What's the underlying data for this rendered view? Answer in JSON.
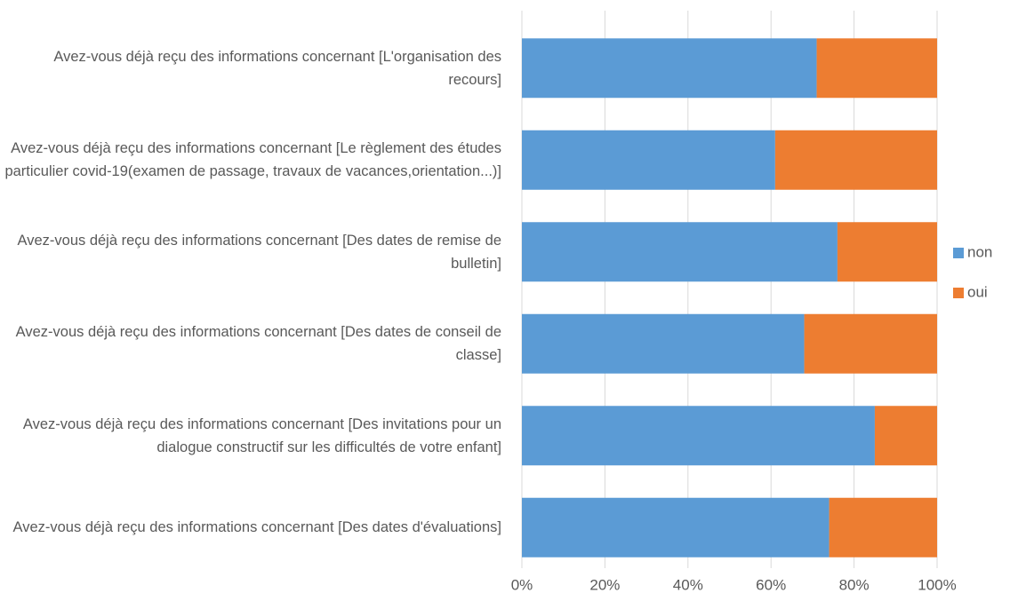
{
  "chart_data": {
    "type": "stacked_bar_horizontal",
    "categories": [
      "Avez-vous déjà reçu des informations concernant [L'organisation des recours]",
      "Avez-vous déjà reçu des informations concernant [Le règlement des études particulier covid-19(examen de passage, travaux de vacances,orientation...)]",
      "Avez-vous déjà reçu des informations concernant [Des dates de remise de bulletin]",
      "Avez-vous déjà reçu des informations concernant [Des dates de conseil de classe]",
      "Avez-vous déjà reçu des informations concernant [Des invitations pour un dialogue constructif sur les difficultés de votre enfant]",
      "Avez-vous déjà reçu des informations concernant [Des dates d'évaluations]"
    ],
    "series": [
      {
        "name": "non",
        "color": "#5b9bd5",
        "values": [
          71,
          61,
          76,
          68,
          85,
          74
        ]
      },
      {
        "name": "oui",
        "color": "#ed7d31",
        "values": [
          29,
          39,
          24,
          32,
          15,
          26
        ]
      }
    ],
    "xlim": [
      0,
      100
    ],
    "xticks": [
      {
        "value": 0,
        "label": "0%"
      },
      {
        "value": 20,
        "label": "20%"
      },
      {
        "value": 40,
        "label": "40%"
      },
      {
        "value": 60,
        "label": "60%"
      },
      {
        "value": 80,
        "label": "80%"
      },
      {
        "value": 100,
        "label": "100%"
      }
    ],
    "grid": true,
    "legend": "right"
  }
}
